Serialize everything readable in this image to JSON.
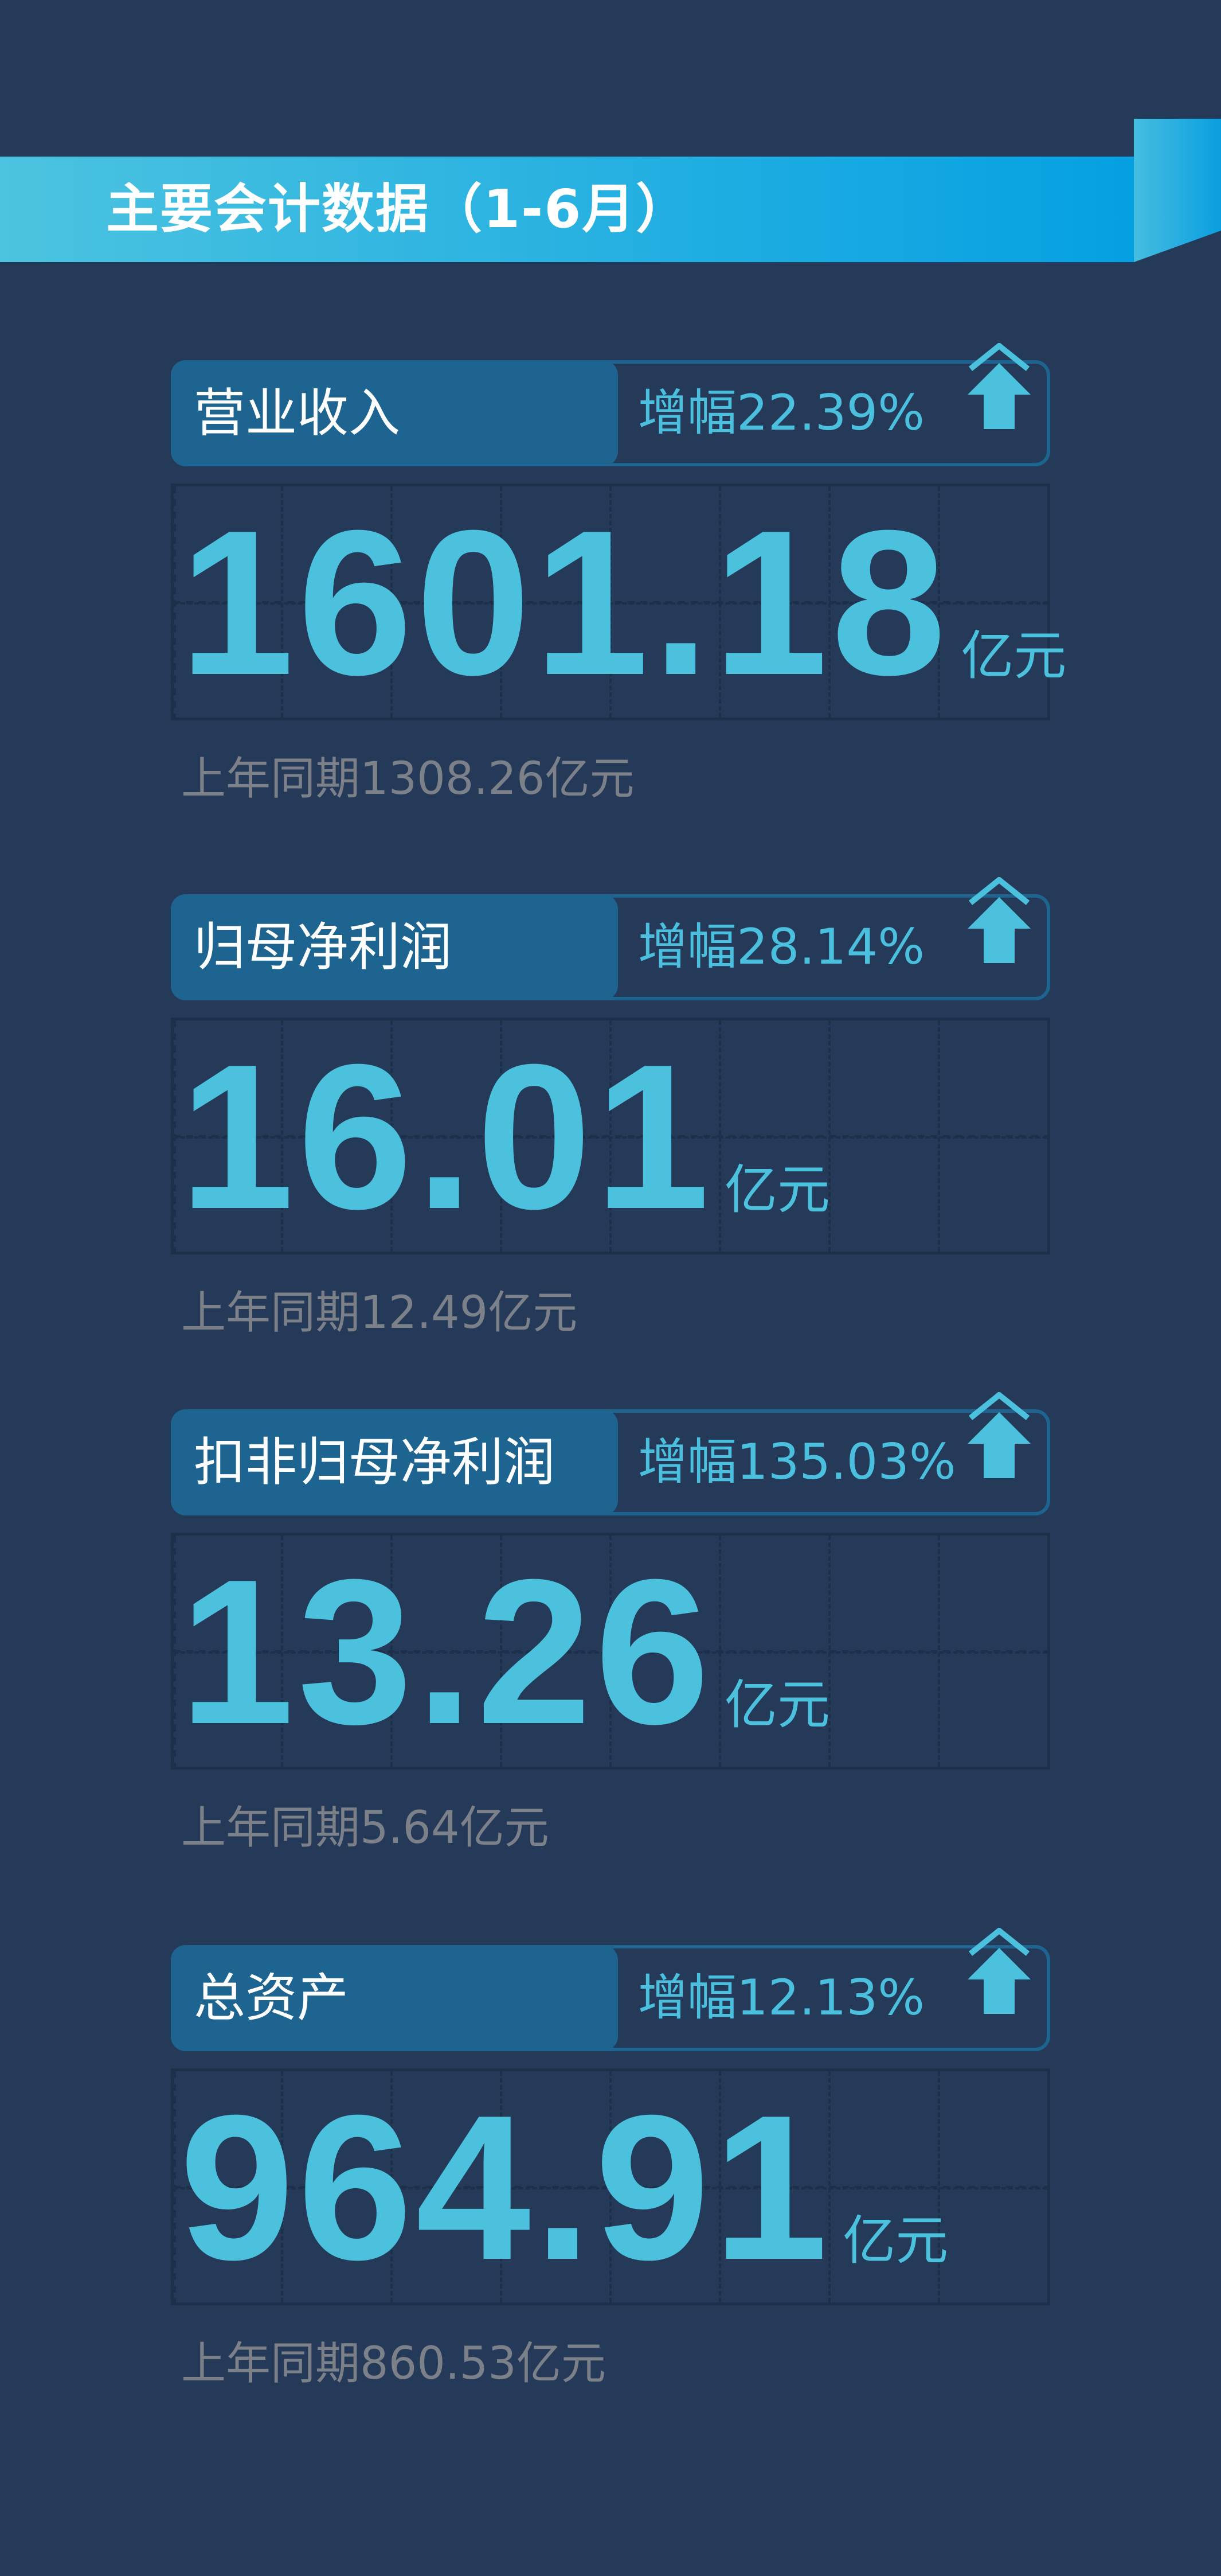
{
  "title": "主要会计数据（1-6月）",
  "colors": {
    "background": "#253a59",
    "accent": "#4bc1de",
    "pill": "#1d6590",
    "muted": "#7b8089"
  },
  "cards": [
    {
      "label": "营业收入",
      "growth": "增幅22.39%",
      "value": "1601.18",
      "unit": "亿元",
      "prev": "上年同期1308.26亿元",
      "icon": "arrow-up-icon"
    },
    {
      "label": "归母净利润",
      "growth": "增幅28.14%",
      "value": "16.01",
      "unit": "亿元",
      "prev": "上年同期12.49亿元",
      "icon": "arrow-up-icon"
    },
    {
      "label": "扣非归母净利润",
      "growth": "增幅135.03%",
      "value": "13.26",
      "unit": "亿元",
      "prev": "上年同期5.64亿元",
      "icon": "arrow-up-icon"
    },
    {
      "label": "总资产",
      "growth": "增幅12.13%",
      "value": "964.91",
      "unit": "亿元",
      "prev": "上年同期860.53亿元",
      "icon": "arrow-up-icon"
    }
  ]
}
